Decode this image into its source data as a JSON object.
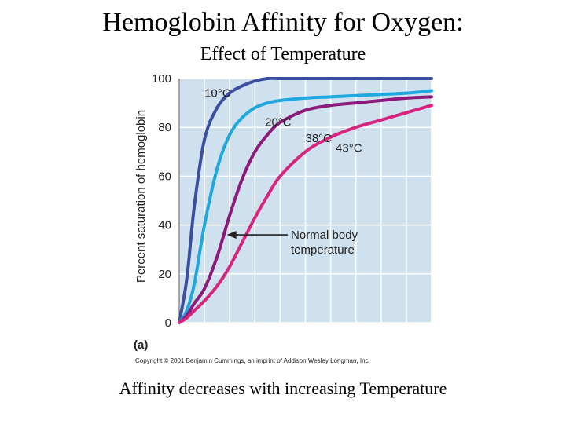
{
  "slide": {
    "title": "Hemoglobin Affinity for Oxygen:",
    "subtitle": "Effect of Temperature",
    "caption": "Affinity decreases with increasing Temperature"
  },
  "chart_data": {
    "type": "line",
    "title": "",
    "xlabel": "",
    "ylabel": "Percent saturation of hemoglobin",
    "xlim": [
      0,
      100
    ],
    "ylim": [
      0,
      100
    ],
    "yticks": [
      0,
      20,
      40,
      60,
      80,
      100
    ],
    "xgrid_count": 10,
    "grid": true,
    "plot_background": "#cfe1ee",
    "grid_color": "#ffffff",
    "x": [
      0,
      3,
      6,
      10,
      15,
      20,
      25,
      30,
      35,
      40,
      50,
      60,
      70,
      80,
      90,
      100
    ],
    "series": [
      {
        "name": "10°C",
        "label": "10°C",
        "color": "#3a4fa0",
        "values": [
          0,
          18,
          48,
          75,
          88,
          94,
          97,
          99,
          100,
          100,
          100,
          100,
          100,
          100,
          100,
          100
        ]
      },
      {
        "name": "20°C",
        "label": "20°C",
        "color": "#1fa8df",
        "values": [
          0,
          5,
          16,
          40,
          63,
          77,
          84,
          88,
          90,
          91,
          92,
          92.5,
          93,
          93.5,
          94,
          95
        ]
      },
      {
        "name": "38°C",
        "label": "38°C",
        "color": "#8b1a7a",
        "values": [
          0,
          3,
          8,
          14,
          27,
          44,
          59,
          70,
          77,
          82,
          87,
          89,
          90,
          91,
          92,
          92.5
        ]
      },
      {
        "name": "43°C",
        "label": "43°C",
        "color": "#d6257f",
        "values": [
          0,
          2,
          5,
          9,
          15,
          23,
          33,
          43,
          52,
          60,
          70,
          76,
          80,
          83,
          86,
          89
        ]
      }
    ],
    "annotation": {
      "lines": [
        "Normal body",
        "temperature"
      ],
      "points_to_series": "38°C",
      "at_y": 36
    },
    "panel_label": "(a)",
    "copyright": "Copyright © 2001 Benjamin Cummings, an imprint of Addison Wesley Longman, Inc."
  }
}
